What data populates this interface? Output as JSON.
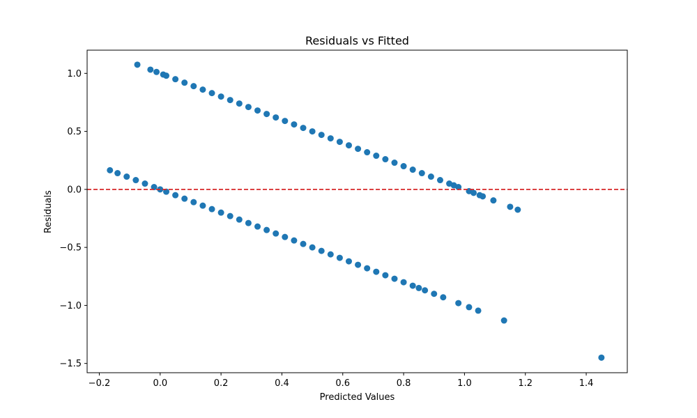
{
  "chart_data": {
    "type": "scatter",
    "title": "Residuals vs Fitted",
    "xlabel": "Predicted Values",
    "ylabel": "Residuals",
    "xlim": [
      -0.24,
      1.535
    ],
    "ylim": [
      -1.58,
      1.2
    ],
    "x_ticks": [
      -0.2,
      0.0,
      0.2,
      0.4,
      0.6,
      0.8,
      1.0,
      1.2,
      1.4
    ],
    "x_tick_labels": [
      "−0.2",
      "0.0",
      "0.2",
      "0.4",
      "0.6",
      "0.8",
      "1.0",
      "1.2",
      "1.4"
    ],
    "y_ticks": [
      -1.5,
      -1.0,
      -0.5,
      0.0,
      0.5,
      1.0
    ],
    "y_tick_labels": [
      "−1.5",
      "−1.0",
      "−0.5",
      "0.0",
      "0.5",
      "1.0"
    ],
    "grid": false,
    "marker_color": "#1f77b4",
    "reference_line": {
      "y": 0.0,
      "color": "#d62728",
      "style": "dashed"
    },
    "series": [
      {
        "points": [
          [
            -0.075,
            1.075
          ],
          [
            -0.032,
            1.032
          ],
          [
            -0.012,
            1.012
          ],
          [
            0.01,
            0.99
          ],
          [
            0.02,
            0.98
          ],
          [
            0.05,
            0.95
          ],
          [
            0.08,
            0.92
          ],
          [
            0.11,
            0.89
          ],
          [
            0.14,
            0.86
          ],
          [
            0.17,
            0.83
          ],
          [
            0.2,
            0.8
          ],
          [
            0.23,
            0.77
          ],
          [
            0.26,
            0.74
          ],
          [
            0.29,
            0.71
          ],
          [
            0.32,
            0.68
          ],
          [
            0.35,
            0.65
          ],
          [
            0.38,
            0.62
          ],
          [
            0.41,
            0.59
          ],
          [
            0.44,
            0.56
          ],
          [
            0.47,
            0.53
          ],
          [
            0.5,
            0.5
          ],
          [
            0.53,
            0.47
          ],
          [
            0.56,
            0.44
          ],
          [
            0.59,
            0.41
          ],
          [
            0.62,
            0.38
          ],
          [
            0.65,
            0.35
          ],
          [
            0.68,
            0.32
          ],
          [
            0.71,
            0.29
          ],
          [
            0.74,
            0.26
          ],
          [
            0.77,
            0.23
          ],
          [
            0.8,
            0.2
          ],
          [
            0.83,
            0.17
          ],
          [
            0.86,
            0.14
          ],
          [
            0.89,
            0.11
          ],
          [
            0.92,
            0.08
          ],
          [
            0.95,
            0.05
          ],
          [
            0.965,
            0.035
          ],
          [
            0.98,
            0.02
          ],
          [
            1.015,
            -0.015
          ],
          [
            1.03,
            -0.03
          ],
          [
            1.05,
            -0.05
          ],
          [
            1.06,
            -0.06
          ],
          [
            1.095,
            -0.095
          ],
          [
            1.15,
            -0.15
          ],
          [
            1.175,
            -0.175
          ],
          [
            -0.165,
            0.165
          ],
          [
            -0.14,
            0.14
          ],
          [
            -0.11,
            0.11
          ],
          [
            -0.08,
            0.08
          ],
          [
            -0.05,
            0.05
          ],
          [
            -0.02,
            0.02
          ],
          [
            0.0,
            0.0
          ],
          [
            0.02,
            -0.02
          ],
          [
            0.05,
            -0.05
          ],
          [
            0.08,
            -0.08
          ],
          [
            0.11,
            -0.11
          ],
          [
            0.14,
            -0.14
          ],
          [
            0.17,
            -0.17
          ],
          [
            0.2,
            -0.2
          ],
          [
            0.23,
            -0.23
          ],
          [
            0.26,
            -0.26
          ],
          [
            0.29,
            -0.29
          ],
          [
            0.32,
            -0.32
          ],
          [
            0.35,
            -0.35
          ],
          [
            0.38,
            -0.38
          ],
          [
            0.41,
            -0.41
          ],
          [
            0.44,
            -0.44
          ],
          [
            0.47,
            -0.47
          ],
          [
            0.5,
            -0.5
          ],
          [
            0.53,
            -0.53
          ],
          [
            0.56,
            -0.56
          ],
          [
            0.59,
            -0.59
          ],
          [
            0.62,
            -0.62
          ],
          [
            0.65,
            -0.65
          ],
          [
            0.68,
            -0.68
          ],
          [
            0.71,
            -0.71
          ],
          [
            0.74,
            -0.74
          ],
          [
            0.77,
            -0.77
          ],
          [
            0.8,
            -0.8
          ],
          [
            0.83,
            -0.83
          ],
          [
            0.85,
            -0.85
          ],
          [
            0.87,
            -0.87
          ],
          [
            0.9,
            -0.9
          ],
          [
            0.93,
            -0.93
          ],
          [
            0.98,
            -0.98
          ],
          [
            1.015,
            -1.015
          ],
          [
            1.045,
            -1.045
          ],
          [
            1.13,
            -1.13
          ],
          [
            1.45,
            -1.45
          ]
        ]
      }
    ]
  }
}
